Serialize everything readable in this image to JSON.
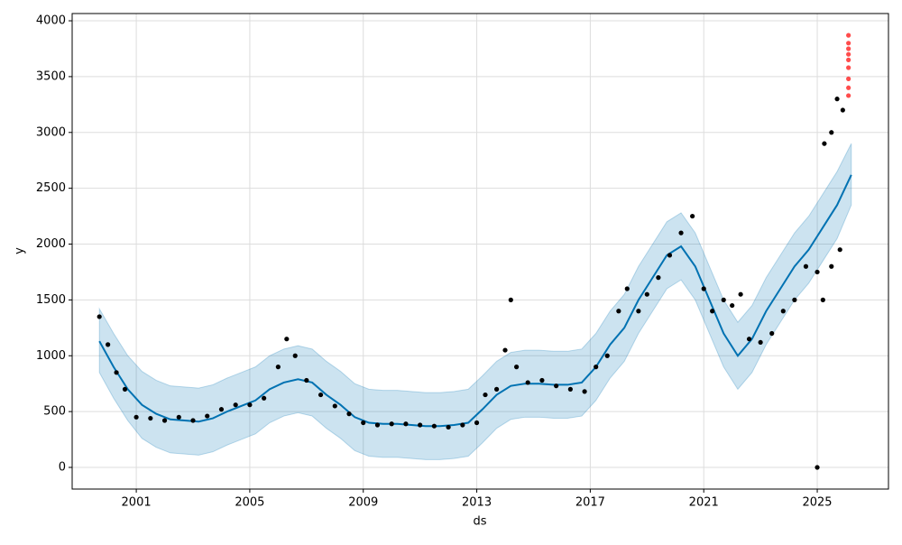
{
  "chart_data": {
    "type": "forecast",
    "xlabel": "ds",
    "ylabel": "y",
    "xlim": [
      1998.74,
      2027.51
    ],
    "ylim": [
      -194,
      4065
    ],
    "xticks": [
      2001,
      2005,
      2009,
      2013,
      2017,
      2021,
      2025
    ],
    "yticks": [
      0,
      500,
      1000,
      1500,
      2000,
      2500,
      3000,
      3500,
      4000
    ],
    "grid": true,
    "series": [
      {
        "type": "band",
        "color": "#0072b2",
        "x": [
          1999.7,
          2000.2,
          2000.7,
          2001.2,
          2001.7,
          2002.2,
          2002.7,
          2003.2,
          2003.7,
          2004.2,
          2004.7,
          2005.2,
          2005.7,
          2006.2,
          2006.7,
          2007.2,
          2007.7,
          2008.2,
          2008.7,
          2009.2,
          2009.7,
          2010.2,
          2010.7,
          2011.2,
          2011.7,
          2012.2,
          2012.7,
          2013.2,
          2013.7,
          2014.2,
          2014.7,
          2015.2,
          2015.7,
          2016.2,
          2016.7,
          2017.2,
          2017.7,
          2018.2,
          2018.7,
          2019.2,
          2019.7,
          2020.2,
          2020.7,
          2021.2,
          2021.7,
          2022.2,
          2022.7,
          2023.2,
          2023.7,
          2024.2,
          2024.7,
          2025.2,
          2025.7,
          2026.2
        ],
        "lower": [
          850,
          620,
          420,
          260,
          180,
          130,
          120,
          110,
          140,
          200,
          250,
          300,
          400,
          460,
          490,
          460,
          350,
          260,
          150,
          100,
          90,
          90,
          80,
          70,
          70,
          80,
          100,
          220,
          350,
          430,
          450,
          450,
          440,
          440,
          460,
          600,
          800,
          950,
          1200,
          1400,
          1600,
          1680,
          1500,
          1200,
          900,
          700,
          850,
          1100,
          1300,
          1500,
          1650,
          1850,
          2050,
          2350
        ],
        "upper": [
          1420,
          1200,
          1000,
          860,
          780,
          730,
          720,
          710,
          740,
          800,
          850,
          900,
          1000,
          1060,
          1090,
          1060,
          950,
          860,
          750,
          700,
          690,
          690,
          680,
          670,
          670,
          680,
          700,
          820,
          950,
          1030,
          1050,
          1050,
          1040,
          1040,
          1060,
          1200,
          1400,
          1550,
          1800,
          2000,
          2200,
          2280,
          2100,
          1800,
          1500,
          1300,
          1450,
          1700,
          1900,
          2100,
          2250,
          2450,
          2650,
          2900
        ]
      },
      {
        "type": "line",
        "color": "#0072b2",
        "x": [
          1999.7,
          2000.2,
          2000.7,
          2001.2,
          2001.7,
          2002.2,
          2002.7,
          2003.2,
          2003.7,
          2004.2,
          2004.7,
          2005.2,
          2005.7,
          2006.2,
          2006.7,
          2007.2,
          2007.7,
          2008.2,
          2008.7,
          2009.2,
          2009.7,
          2010.2,
          2010.7,
          2011.2,
          2011.7,
          2012.2,
          2012.7,
          2013.2,
          2013.7,
          2014.2,
          2014.7,
          2015.2,
          2015.7,
          2016.2,
          2016.7,
          2017.2,
          2017.7,
          2018.2,
          2018.7,
          2019.2,
          2019.7,
          2020.2,
          2020.7,
          2021.2,
          2021.7,
          2022.2,
          2022.7,
          2023.2,
          2023.7,
          2024.2,
          2024.7,
          2025.2,
          2025.7,
          2026.2
        ],
        "values": [
          1130,
          900,
          700,
          560,
          480,
          430,
          420,
          410,
          440,
          500,
          550,
          600,
          700,
          760,
          790,
          760,
          650,
          560,
          450,
          400,
          390,
          390,
          380,
          370,
          370,
          380,
          400,
          520,
          650,
          730,
          750,
          750,
          740,
          740,
          760,
          900,
          1100,
          1250,
          1500,
          1700,
          1900,
          1980,
          1800,
          1500,
          1200,
          1000,
          1150,
          1400,
          1600,
          1800,
          1950,
          2150,
          2350,
          2620
        ]
      },
      {
        "type": "scatter",
        "color": "#000000",
        "x": [
          1999.7,
          2000.0,
          2000.3,
          2000.6,
          2001.0,
          2001.5,
          2002.0,
          2002.5,
          2003.0,
          2003.5,
          2004.0,
          2004.5,
          2005.0,
          2005.5,
          2006.0,
          2006.3,
          2006.6,
          2007.0,
          2007.5,
          2008.0,
          2008.5,
          2009.0,
          2009.5,
          2010.0,
          2010.5,
          2011.0,
          2011.5,
          2012.0,
          2012.5,
          2013.0,
          2013.3,
          2013.7,
          2014.0,
          2014.2,
          2014.4,
          2014.8,
          2015.3,
          2015.8,
          2016.3,
          2016.8,
          2017.2,
          2017.6,
          2018.0,
          2018.3,
          2018.7,
          2019.0,
          2019.4,
          2019.8,
          2020.2,
          2020.6,
          2021.0,
          2021.3,
          2021.7,
          2022.0,
          2022.3,
          2022.6,
          2023.0,
          2023.4,
          2023.8,
          2024.2,
          2024.6,
          2025.0,
          2025.0,
          2025.2,
          2025.5,
          2025.8,
          2025.25,
          2025.5,
          2025.7,
          2025.9
        ],
        "values": [
          1350,
          1100,
          850,
          700,
          450,
          440,
          420,
          450,
          420,
          460,
          520,
          560,
          560,
          620,
          900,
          1150,
          1000,
          780,
          650,
          550,
          480,
          400,
          380,
          390,
          390,
          380,
          370,
          360,
          380,
          400,
          650,
          700,
          1050,
          1500,
          900,
          760,
          780,
          730,
          700,
          680,
          900,
          1000,
          1400,
          1600,
          1400,
          1550,
          1700,
          1900,
          2100,
          2250,
          1600,
          1400,
          1500,
          1450,
          1550,
          1150,
          1120,
          1200,
          1400,
          1500,
          1800,
          1750,
          0,
          1500,
          1800,
          1950,
          2900,
          3000,
          3300,
          3200
        ]
      },
      {
        "type": "scatter",
        "color": "#ff0000",
        "x": [
          2026.1,
          2026.1,
          2026.1,
          2026.1,
          2026.1,
          2026.1,
          2026.1,
          2026.1,
          2026.1
        ],
        "values": [
          3330,
          3400,
          3480,
          3580,
          3650,
          3700,
          3750,
          3800,
          3870
        ]
      }
    ]
  }
}
